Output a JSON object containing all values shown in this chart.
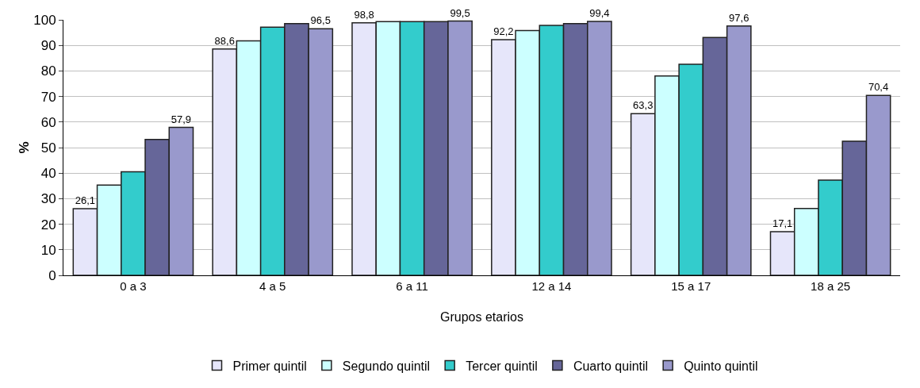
{
  "chart_data": {
    "type": "bar",
    "xlabel": "Grupos etarios",
    "ylabel": "%",
    "categories": [
      "0 a 3",
      "4 a 5",
      "6 a 11",
      "12 a 14",
      "15 a 17",
      "18 a 25"
    ],
    "series": [
      {
        "name": "Primer quintil",
        "color": "#e6e6fa",
        "values": [
          26.1,
          88.6,
          98.8,
          92.2,
          63.3,
          17.1
        ],
        "value_labels": [
          "26,1",
          "88,6",
          "98,8",
          "92,2",
          "63,3",
          "17,1"
        ]
      },
      {
        "name": "Segundo quintil",
        "color": "#ccffff",
        "values": [
          35.3,
          91.8,
          99.3,
          95.8,
          78.0,
          26.2
        ]
      },
      {
        "name": "Tercer quintil",
        "color": "#33cccc",
        "values": [
          40.5,
          97.1,
          99.3,
          97.8,
          82.6,
          37.3
        ]
      },
      {
        "name": "Cuarto quintil",
        "color": "#666699",
        "values": [
          53.2,
          98.5,
          99.3,
          98.5,
          93.1,
          52.5
        ]
      },
      {
        "name": "Quinto quintil",
        "color": "#9999cc",
        "values": [
          57.9,
          96.5,
          99.5,
          99.4,
          97.6,
          70.4
        ],
        "value_labels": [
          "57,9",
          "96,5",
          "99,5",
          "99,4",
          "97,6",
          "70,4"
        ]
      }
    ],
    "ylim": [
      0,
      100
    ],
    "yticks": [
      0,
      10,
      20,
      30,
      40,
      50,
      60,
      70,
      80,
      90,
      100
    ],
    "grid": "y",
    "legend": "bottom"
  }
}
